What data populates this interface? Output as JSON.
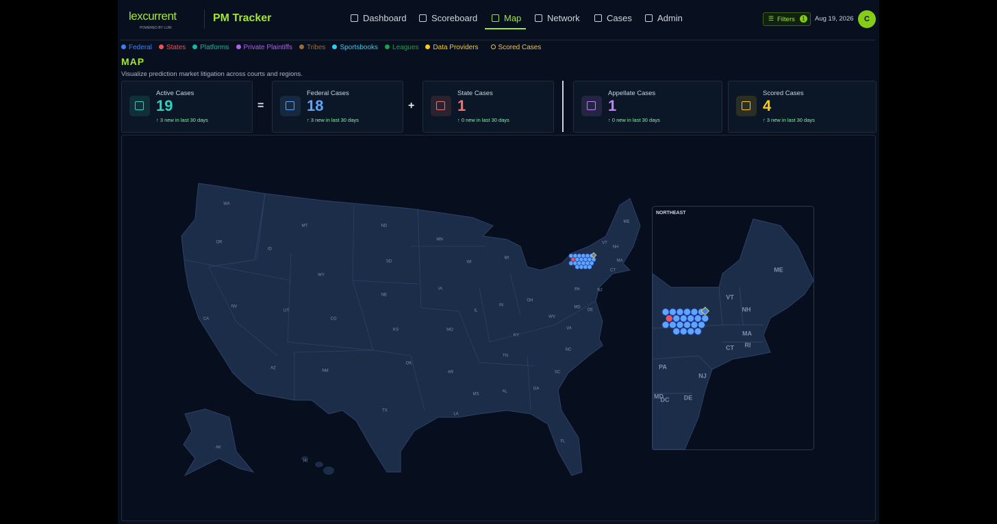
{
  "header": {
    "logo": "lexcurrent",
    "logo_sub": "POWERED BY LURI",
    "app_title": "PM Tracker",
    "nav": [
      "Dashboard",
      "Scoreboard",
      "Map",
      "Network",
      "Cases",
      "Admin"
    ],
    "active_nav": 2,
    "filters": "Filters",
    "filter_count": 1,
    "date": "Aug 19, 2026",
    "avatar": "C"
  },
  "legend": [
    {
      "name": "Federal",
      "color": "#3b82f6"
    },
    {
      "name": "States",
      "color": "#f05252"
    },
    {
      "name": "Platforms",
      "color": "#14b8a6"
    },
    {
      "name": "Private Plaintiffs",
      "color": "#b45cf0"
    },
    {
      "name": "Tribes",
      "color": "#9a6a3a"
    },
    {
      "name": "Sportsbooks",
      "color": "#22d3ee"
    },
    {
      "name": "Leagues",
      "color": "#16a34a"
    },
    {
      "name": "Data Providers",
      "color": "#facc15"
    },
    {
      "name": "Scored Cases",
      "color": "#f5c24a",
      "style": "ring"
    }
  ],
  "page": {
    "title": "MAP",
    "subtitle": "Visualize prediction market litigation across courts and regions."
  },
  "stats": [
    {
      "label": "Active Cases",
      "value": 19,
      "note": "↑ 3 new in last 30 days",
      "color": "#2dd4bf"
    },
    {
      "label": "Federal Cases",
      "value": 18,
      "note": "↑ 3 new in last 30 days",
      "color": "#60a5fa"
    },
    {
      "label": "State Cases",
      "value": 1,
      "note": "↑ 0 new in last 30 days",
      "color": "#f87171"
    },
    {
      "label": "Appellate Cases",
      "value": 1,
      "note": "↑ 0 new in last 30 days",
      "color": "#c084fc"
    },
    {
      "label": "Scored Cases",
      "value": 4,
      "note": "↑ 3 new in last 30 days",
      "color": "#facc15"
    }
  ],
  "operators": [
    "=",
    "+"
  ],
  "map": {
    "states": [
      "WA",
      "OR",
      "CA",
      "NV",
      "ID",
      "MT",
      "WY",
      "UT",
      "AZ",
      "CO",
      "NM",
      "ND",
      "SD",
      "NE",
      "KS",
      "OK",
      "TX",
      "MN",
      "IA",
      "MO",
      "AR",
      "LA",
      "WI",
      "IL",
      "MS",
      "MI",
      "IN",
      "KY",
      "TN",
      "AL",
      "GA",
      "FL",
      "OH",
      "WV",
      "VA",
      "NC",
      "SC",
      "PA",
      "VT",
      "NH",
      "ME",
      "MA",
      "CT",
      "NJ",
      "MD",
      "DE",
      "AK",
      "HI"
    ],
    "inset_title": "NORTHEAST",
    "inset_states": [
      "ME",
      "VT",
      "NH",
      "MA",
      "CT",
      "RI",
      "PA",
      "NJ",
      "MD",
      "DC",
      "DE"
    ]
  }
}
